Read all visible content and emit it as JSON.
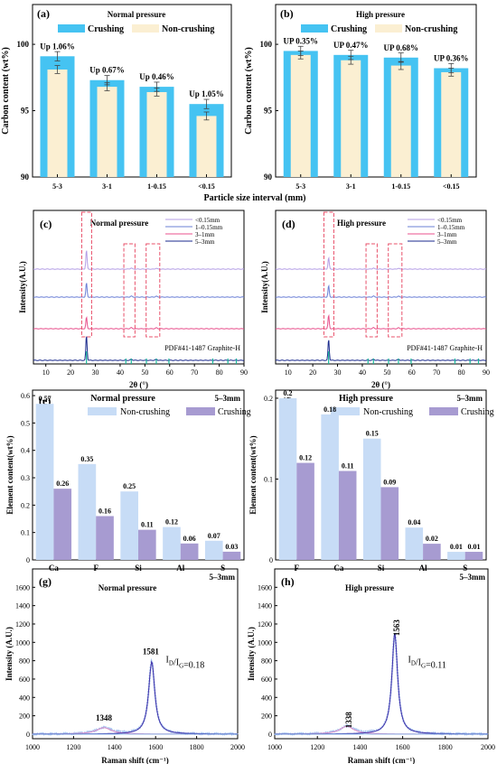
{
  "chart_data": [
    {
      "panel": "(a)",
      "type": "bar",
      "title": "Normal pressure",
      "xlabel": "Particle size interval (mm)",
      "ylabel": "Carbon content (wt%)",
      "ylim": [
        90,
        103
      ],
      "yticks": [
        90,
        95,
        100
      ],
      "categories": [
        "5-3",
        "3-1",
        "1-0.15",
        "<0.15"
      ],
      "series": [
        {
          "name": "Crushing",
          "values": [
            99.1,
            97.3,
            96.8,
            95.5
          ],
          "color": "#45c3f2"
        },
        {
          "name": "Non-crushing",
          "values": [
            98.1,
            96.8,
            96.4,
            94.6
          ],
          "color": "#fbefd2"
        }
      ],
      "annotations": [
        "Up 1.06%",
        "Up 0.67%",
        "Up 0.46%",
        "Up 1.05%"
      ],
      "legend": "top"
    },
    {
      "panel": "(b)",
      "type": "bar",
      "title": "High pressure",
      "xlabel": "Particle size interval (mm)",
      "ylabel": "Carbon content (wt%)",
      "ylim": [
        90,
        103
      ],
      "yticks": [
        90,
        95,
        100
      ],
      "categories": [
        "5-3",
        "3-1",
        "1-0.15",
        "<0.15"
      ],
      "series": [
        {
          "name": "Crushing",
          "values": [
            99.5,
            99.2,
            99.0,
            98.2
          ],
          "color": "#45c3f2"
        },
        {
          "name": "Non-crushing",
          "values": [
            99.2,
            98.8,
            98.4,
            97.9
          ],
          "color": "#fbefd2"
        }
      ],
      "annotations": [
        "UP 0.35%",
        "UP 0.47%",
        "UP 0.68%",
        "UP 0.36%"
      ],
      "legend": "top"
    },
    {
      "panel": "(c)",
      "type": "line",
      "title": "Normal pressure",
      "xlabel": "2θ (°)",
      "ylabel": "Intensity(A.U.)",
      "xlim": [
        5,
        90
      ],
      "xticks": [
        10,
        20,
        30,
        40,
        50,
        60,
        70,
        80,
        90
      ],
      "series": [
        {
          "name": "<0.15mm",
          "color": "#b49ee6",
          "peak_height": 1.0
        },
        {
          "name": "1–0.15mm",
          "color": "#6a7fd6",
          "peak_height": 0.75
        },
        {
          "name": "3–1mm",
          "color": "#e8508c",
          "peak_height": 0.6
        },
        {
          "name": "5–3mm",
          "color": "#1a2a8c",
          "peak_height": 1.3
        }
      ],
      "reference_label": "PDF#41-1487 Graphite-H",
      "reference_peaks": [
        26.4,
        42.3,
        44.5,
        50.6,
        54.6,
        59.7,
        77.4,
        83.5,
        86.9
      ],
      "highlight_ranges": [
        [
          24.5,
          28.5
        ],
        [
          41.5,
          46
        ],
        [
          50.5,
          56
        ]
      ],
      "legend": "top-right"
    },
    {
      "panel": "(d)",
      "type": "line",
      "title": "High pressure",
      "xlabel": "2θ (°)",
      "ylabel": "Intensity(A.U.)",
      "xlim": [
        5,
        90
      ],
      "xticks": [
        10,
        20,
        30,
        40,
        50,
        60,
        70,
        80,
        90
      ],
      "series": [
        {
          "name": "<0.15mm",
          "color": "#b49ee6",
          "peak_height": 0.6
        },
        {
          "name": "1–0.15mm",
          "color": "#6a7fd6",
          "peak_height": 0.6
        },
        {
          "name": "3–1mm",
          "color": "#e8508c",
          "peak_height": 0.7
        },
        {
          "name": "5–3mm",
          "color": "#1a2a8c",
          "peak_height": 1.1
        }
      ],
      "reference_label": "PDF#41-1487 Graphite-H",
      "reference_peaks": [
        26.4,
        42.3,
        44.5,
        50.6,
        54.6,
        59.7,
        77.4,
        83.5,
        86.9
      ],
      "highlight_ranges": [
        [
          24.5,
          28.5
        ],
        [
          41.5,
          46
        ],
        [
          50.5,
          56
        ]
      ],
      "legend": "top-right"
    },
    {
      "panel": "(e)",
      "type": "bar",
      "title": "Normal pressure",
      "note": "5–3mm",
      "ylabel": "Element content(wt%)",
      "ylim": [
        0,
        0.62
      ],
      "yticks": [
        0.0,
        0.1,
        0.2,
        0.3,
        0.4,
        0.5,
        0.6
      ],
      "categories": [
        "Ca",
        "F",
        "Si",
        "Al",
        "S"
      ],
      "series": [
        {
          "name": "Non-crushing",
          "values": [
            0.57,
            0.35,
            0.25,
            0.12,
            0.07
          ],
          "color": "#c7dcf6"
        },
        {
          "name": "Crushing",
          "values": [
            0.26,
            0.16,
            0.11,
            0.06,
            0.03
          ],
          "color": "#a79bd1"
        }
      ],
      "legend": "top"
    },
    {
      "panel": "(f)",
      "type": "bar",
      "title": "High pressure",
      "note": "5–3mm",
      "ylabel": "Element content(wt%)",
      "ylim": [
        0,
        0.21
      ],
      "yticks": [
        0.0,
        0.1,
        0.2
      ],
      "categories": [
        "F",
        "Ca",
        "Si",
        "Al",
        "S"
      ],
      "series": [
        {
          "name": "Non-crushing",
          "values": [
            0.2,
            0.18,
            0.15,
            0.04,
            0.01
          ],
          "color": "#c7dcf6"
        },
        {
          "name": "Crushing",
          "values": [
            0.12,
            0.11,
            0.09,
            0.02,
            0.01
          ],
          "color": "#a79bd1"
        }
      ],
      "legend": "top"
    },
    {
      "panel": "(g)",
      "type": "line",
      "title": "Normal pressure",
      "note": "5–3mm",
      "xlabel": "Raman shift (cm⁻¹)",
      "ylabel": "Intensity (A.U.)",
      "xlim": [
        1000,
        2000
      ],
      "ylim": [
        -50,
        1800
      ],
      "xticks": [
        1000,
        1200,
        1400,
        1600,
        1800,
        2000
      ],
      "yticks": [
        0,
        200,
        400,
        600,
        800,
        1000,
        1200,
        1400,
        1600
      ],
      "peaks": [
        {
          "label": "1348",
          "x": 1348,
          "y": 70,
          "width": 45
        },
        {
          "label": "1581",
          "x": 1581,
          "y": 790,
          "width": 18
        }
      ],
      "ratio_label": "I",
      "ratio_sub1": "D",
      "ratio_mid": "/I",
      "ratio_sub2": "G",
      "ratio_value": "=0.18"
    },
    {
      "panel": "(h)",
      "type": "line",
      "title": "High pressure",
      "note": "5–3mm",
      "xlabel": "Raman shift (cm⁻¹)",
      "ylabel": "Intensity (A.U.)",
      "xlim": [
        1000,
        2000
      ],
      "ylim": [
        -50,
        1800
      ],
      "xticks": [
        1000,
        1200,
        1400,
        1600,
        1800,
        2000
      ],
      "yticks": [
        0,
        200,
        400,
        600,
        800,
        1000,
        1200,
        1400,
        1600
      ],
      "peaks": [
        {
          "label": "1338",
          "x": 1338,
          "y": 85,
          "width": 40
        },
        {
          "label": "1563",
          "x": 1563,
          "y": 1100,
          "width": 16
        }
      ],
      "ratio_label": "I",
      "ratio_sub1": "D",
      "ratio_mid": "/I",
      "ratio_sub2": "G",
      "ratio_value": "=0.11"
    }
  ]
}
